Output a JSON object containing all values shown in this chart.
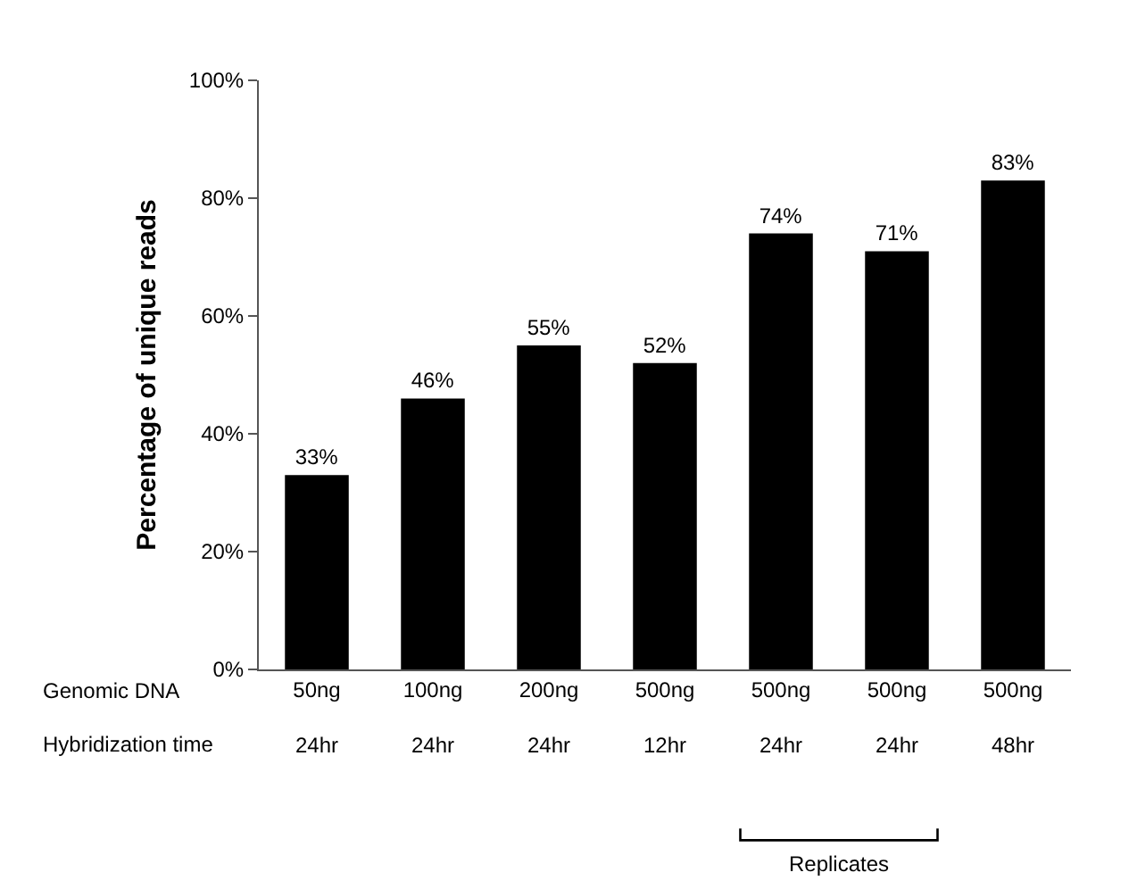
{
  "chart_data": {
    "type": "bar",
    "ylabel": "Percentage of unique reads",
    "categories": [
      "50ng\n24hr",
      "100ng\n24hr",
      "200ng\n24hr",
      "500ng\n12hr",
      "500ng\n24hr",
      "500ng\n24hr",
      "500ng\n48hr"
    ],
    "values": [
      33,
      46,
      55,
      52,
      74,
      71,
      83
    ],
    "value_labels": [
      "33%",
      "46%",
      "55%",
      "52%",
      "74%",
      "71%",
      "83%"
    ],
    "color": "#000000",
    "ylim": [
      0,
      100
    ],
    "yticks": [
      {
        "value": 0,
        "label": "0%"
      },
      {
        "value": 20,
        "label": "20%"
      },
      {
        "value": 40,
        "label": "40%"
      },
      {
        "value": 60,
        "label": "60%"
      },
      {
        "value": 80,
        "label": "80%"
      },
      {
        "value": 100,
        "label": "100%"
      }
    ],
    "annotations": [
      "Genomic DNA",
      "Hybridization time",
      "Replicates"
    ],
    "grid": false,
    "legend": false
  }
}
